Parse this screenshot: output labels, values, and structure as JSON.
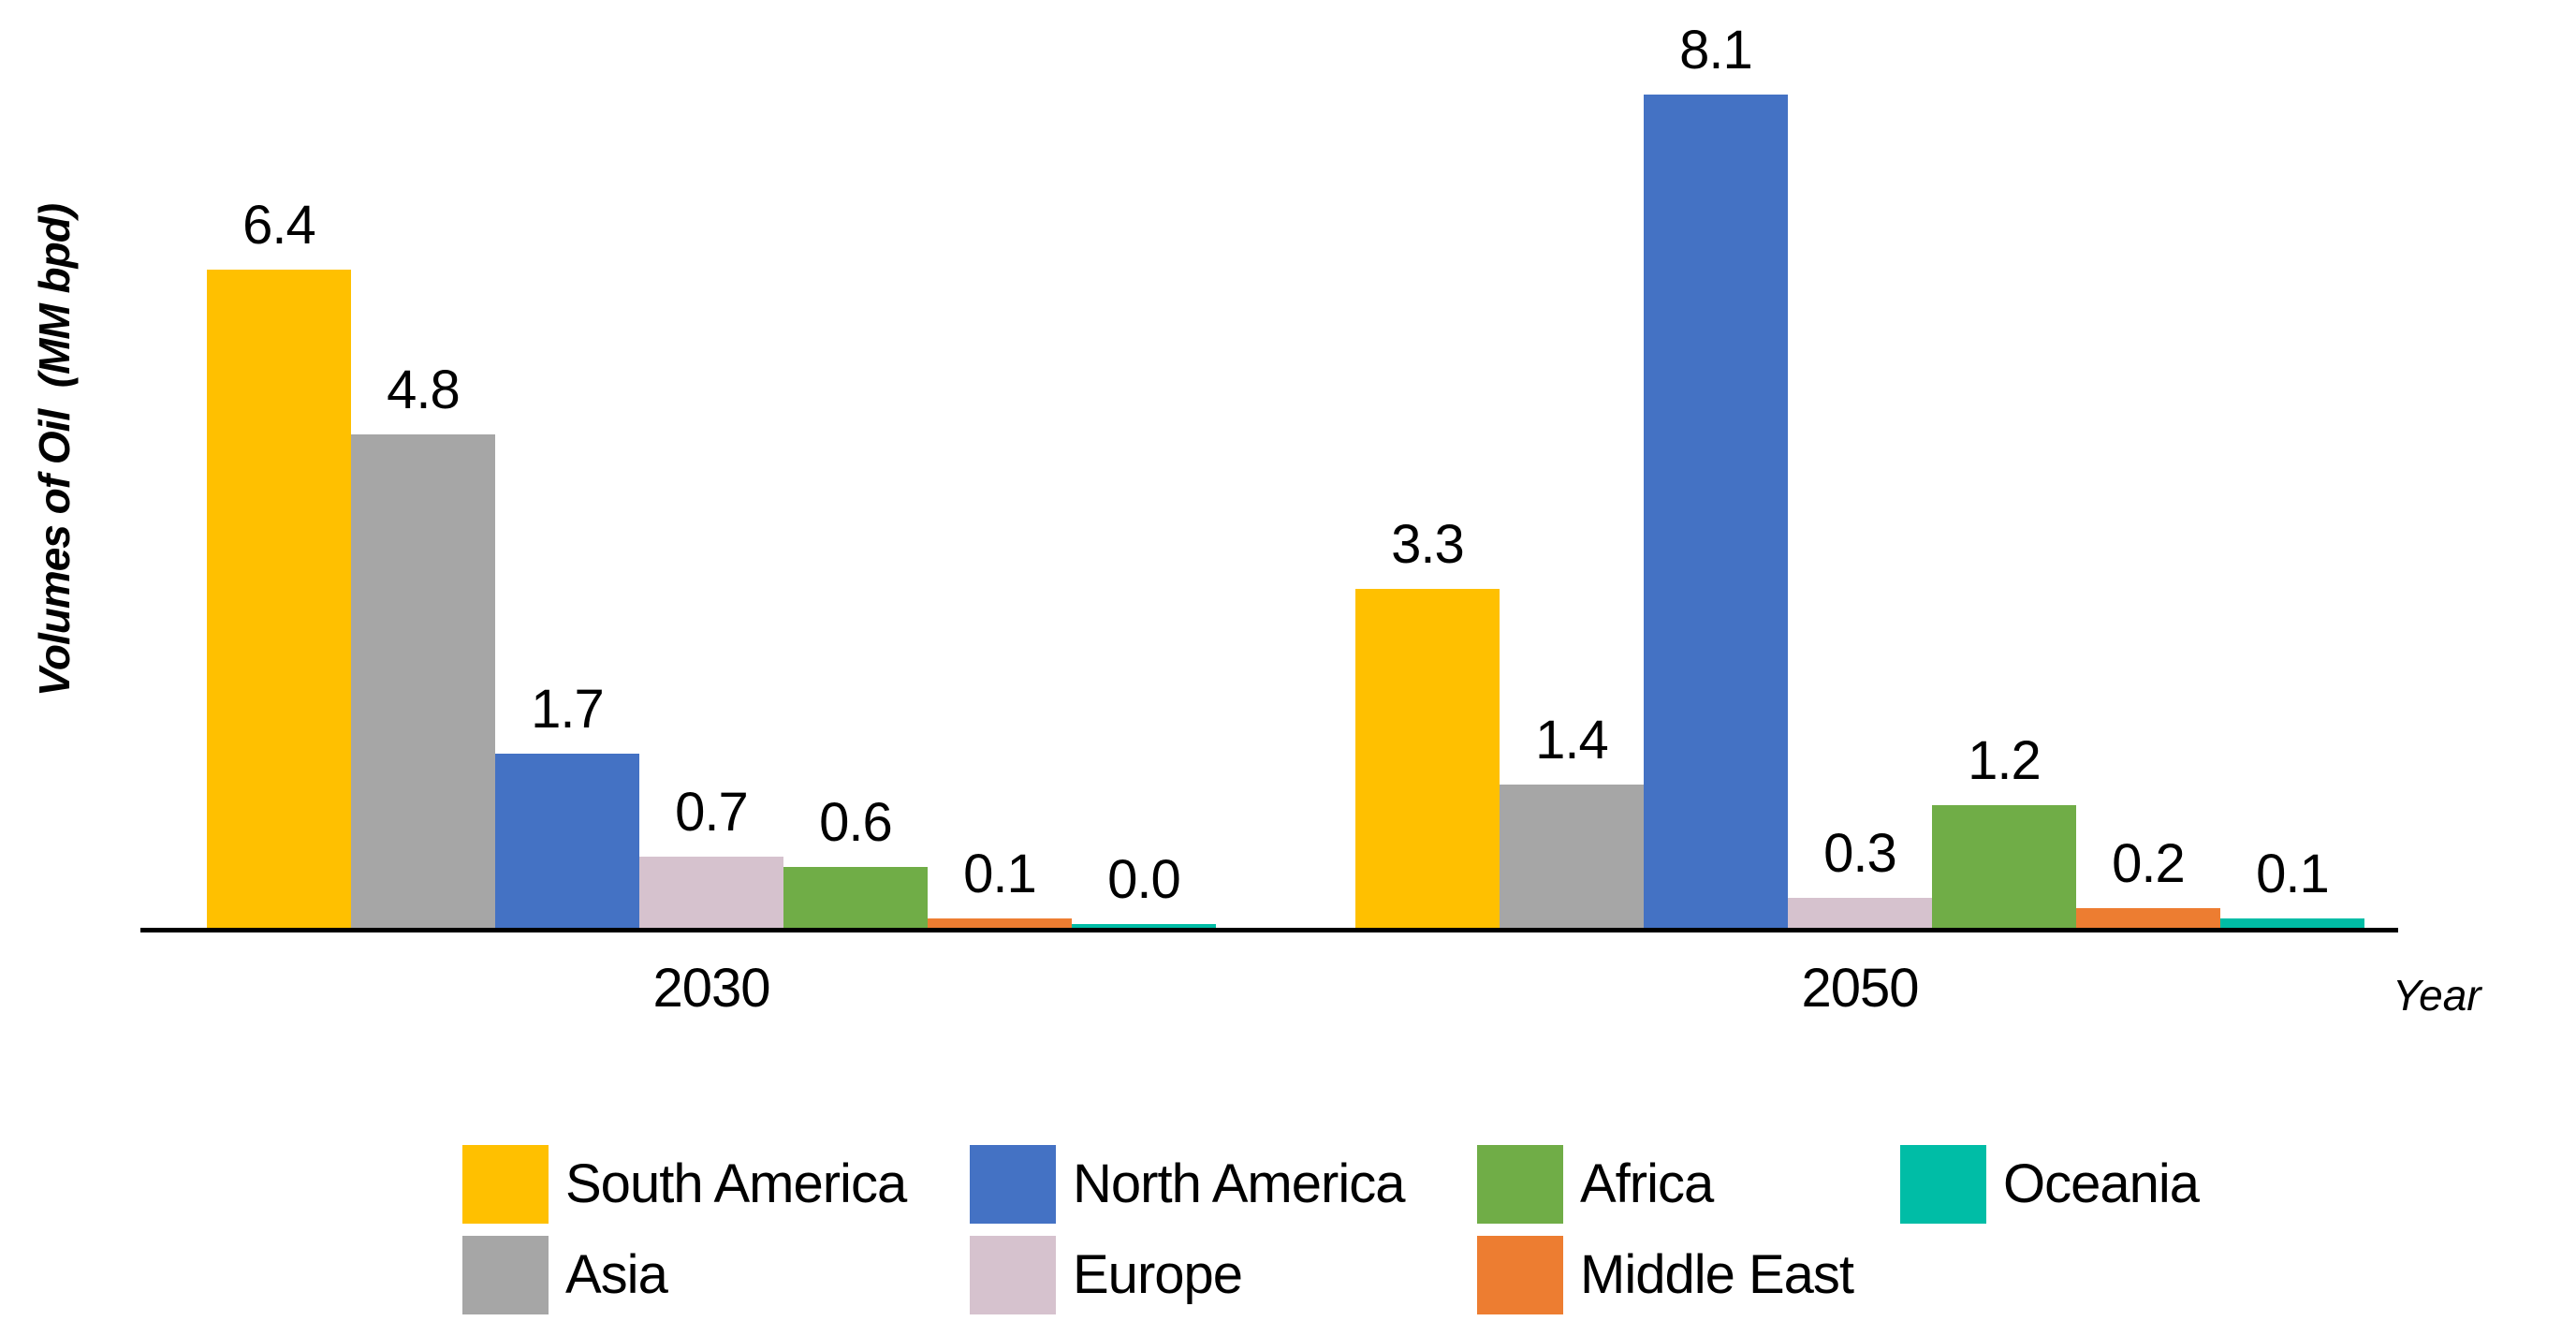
{
  "page": {
    "background_color": "#FFFFFF",
    "text_color": "#000000"
  },
  "chart_data": {
    "type": "bar",
    "title": "",
    "xlabel": "Year",
    "ylabel": "Volumes of Oil  (MM bpd)",
    "categories": [
      "2030",
      "2050"
    ],
    "series": [
      {
        "name": "South America",
        "color": "#FFC000",
        "values": [
          6.4,
          3.3
        ]
      },
      {
        "name": "Asia",
        "color": "#A6A6A6",
        "values": [
          4.8,
          1.4
        ]
      },
      {
        "name": "North America",
        "color": "#4472C4",
        "values": [
          1.7,
          8.1
        ]
      },
      {
        "name": "Europe",
        "color": "#D6C2CE",
        "values": [
          0.7,
          0.3
        ]
      },
      {
        "name": "Africa",
        "color": "#70AD47",
        "values": [
          0.6,
          1.2
        ]
      },
      {
        "name": "Middle East",
        "color": "#ED7D31",
        "values": [
          0.1,
          0.2
        ]
      },
      {
        "name": "Oceania",
        "color": "#00BDA6",
        "values": [
          0.0,
          0.1
        ]
      }
    ],
    "data_labels": {
      "shown": true,
      "format": "one_decimal",
      "labels_2030": [
        "6.4",
        "4.8",
        "1.7",
        "0.7",
        "0.6",
        "0.1",
        "0.0"
      ],
      "labels_2050": [
        "3.3",
        "1.4",
        "8.1",
        "0.3",
        "1.2",
        "0.2",
        "0.1"
      ]
    },
    "legend_position": "bottom",
    "legend_rows": [
      [
        "South America",
        "North America",
        "Africa",
        "Oceania"
      ],
      [
        "Asia",
        "Europe",
        "Middle East"
      ]
    ],
    "ylim": [
      0,
      8.5
    ],
    "grid": false,
    "axis_color": "#000000"
  }
}
